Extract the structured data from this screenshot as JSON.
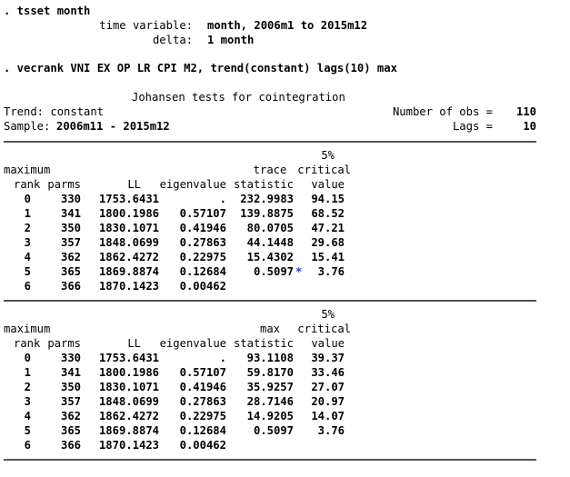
{
  "commands": {
    "tsset": ". tsset month",
    "time_variable_label": "time variable:",
    "time_variable_value": "month, 2006m1 to 2015m12",
    "delta_label": "delta:",
    "delta_value": "1 month",
    "vecrank": ". vecrank VNI EX OP LR CPI M2, trend(constant) lags(10) max"
  },
  "header": {
    "title": "Johansen tests for cointegration",
    "trend_label": "Trend: constant",
    "sample_label": "Sample:",
    "sample_value": "2006m11 - 2015m12",
    "nobs_label": "Number of obs =",
    "nobs_value": "110",
    "lags_label": "Lags =",
    "lags_value": "10"
  },
  "trace_table": {
    "headers": {
      "h5": "5%",
      "maximum": "maximum",
      "rank": "rank",
      "parms": "parms",
      "ll": "LL",
      "eigenvalue": "eigenvalue",
      "stat_top": "trace",
      "stat_bottom": "statistic",
      "crit_top": "critical",
      "crit_bottom": "value"
    },
    "rows": [
      [
        "0",
        "330",
        "1753.6431",
        ".",
        "232.9983",
        "94.15",
        ""
      ],
      [
        "1",
        "341",
        "1800.1986",
        "0.57107",
        "139.8875",
        "68.52",
        ""
      ],
      [
        "2",
        "350",
        "1830.1071",
        "0.41946",
        "80.0705",
        "47.21",
        ""
      ],
      [
        "3",
        "357",
        "1848.0699",
        "0.27863",
        "44.1448",
        "29.68",
        ""
      ],
      [
        "4",
        "362",
        "1862.4272",
        "0.22975",
        "15.4302",
        "15.41",
        ""
      ],
      [
        "5",
        "365",
        "1869.8874",
        "0.12684",
        "0.5097",
        "3.76",
        "*"
      ],
      [
        "6",
        "366",
        "1870.1423",
        "0.00462",
        "",
        "",
        ""
      ]
    ]
  },
  "max_table": {
    "headers": {
      "h5": "5%",
      "maximum": "maximum",
      "rank": "rank",
      "parms": "parms",
      "ll": "LL",
      "eigenvalue": "eigenvalue",
      "stat_top": "max",
      "stat_bottom": "statistic",
      "crit_top": "critical",
      "crit_bottom": "value"
    },
    "rows": [
      [
        "0",
        "330",
        "1753.6431",
        ".",
        "93.1108",
        "39.37",
        ""
      ],
      [
        "1",
        "341",
        "1800.1986",
        "0.57107",
        "59.8170",
        "33.46",
        ""
      ],
      [
        "2",
        "350",
        "1830.1071",
        "0.41946",
        "35.9257",
        "27.07",
        ""
      ],
      [
        "3",
        "357",
        "1848.0699",
        "0.27863",
        "28.7146",
        "20.97",
        ""
      ],
      [
        "4",
        "362",
        "1862.4272",
        "0.22975",
        "14.9205",
        "14.07",
        ""
      ],
      [
        "5",
        "365",
        "1869.8874",
        "0.12684",
        "0.5097",
        "3.76",
        ""
      ],
      [
        "6",
        "366",
        "1870.1423",
        "0.00462",
        "",
        "",
        ""
      ]
    ]
  },
  "colors": {
    "star": "#2a3fd8",
    "rule": "#555555"
  }
}
